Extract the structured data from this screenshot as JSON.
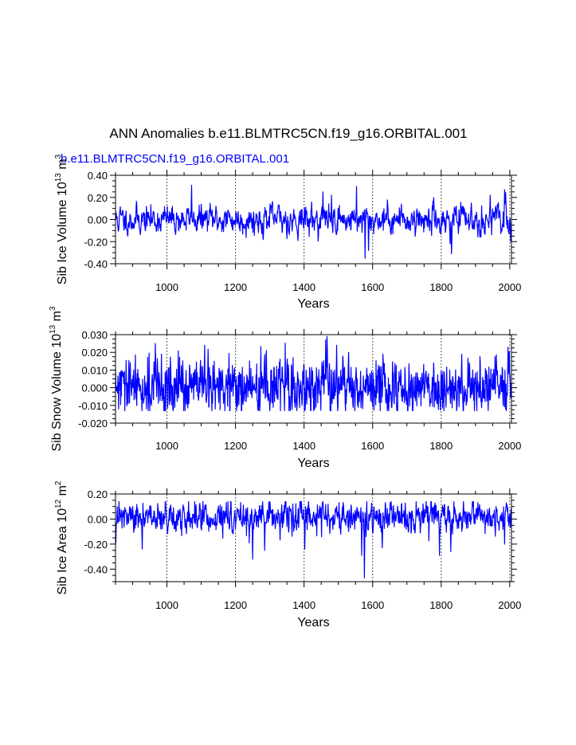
{
  "figure": {
    "title": "ANN Anomalies b.e11.BLMTRC5CN.f19_g16.ORBITAL.001",
    "subtitle": "b.e11.BLMTRC5CN.f19_g16.ORBITAL.001",
    "subtitle_color": "#0000ff",
    "line_color": "#0000ff"
  },
  "chart_data": [
    {
      "type": "line",
      "id": "ice_volume",
      "ylabel": "Sib Ice Volume 10^13 m^3",
      "ylabel_text": "Sib Ice Volume 10",
      "ylabel_exp1": "13",
      "ylabel_unit": " m",
      "ylabel_exp2": "3",
      "xlabel": "Years",
      "xlim": [
        850,
        2005
      ],
      "ylim": [
        -0.4,
        0.4
      ],
      "yticks": [
        -0.4,
        -0.2,
        0.0,
        0.2,
        0.4
      ],
      "ytick_labels": [
        "-0.40",
        "-0.20",
        "0.00",
        "0.20",
        "0.40"
      ],
      "xticks": [
        1000,
        1200,
        1400,
        1600,
        1800,
        2000
      ],
      "xtick_labels": [
        "1000",
        "1200",
        "1400",
        "1600",
        "1800",
        "2000"
      ],
      "vgrid": [
        1000,
        1200,
        1400,
        1600,
        1800,
        2000
      ],
      "series_name": "b.e11.BLMTRC5CN.f19_g16.ORBITAL.001",
      "x_start": 850,
      "x_step": 1,
      "seed": 11,
      "noise": 0.085,
      "smooth": 0.55,
      "clip": [
        -0.36,
        0.32
      ],
      "events": [
        {
          "year": 1072,
          "value": 0.31
        },
        {
          "year": 1455,
          "value": 0.25
        },
        {
          "year": 1480,
          "value": 0.22
        },
        {
          "year": 1553,
          "value": 0.3
        },
        {
          "year": 1578,
          "value": -0.35
        },
        {
          "year": 1588,
          "value": -0.28
        },
        {
          "year": 1830,
          "value": -0.31
        },
        {
          "year": 1826,
          "value": -0.22
        },
        {
          "year": 1943,
          "value": 0.22
        },
        {
          "year": 1985,
          "value": 0.27
        },
        {
          "year": 2003,
          "value": -0.2
        }
      ]
    },
    {
      "type": "line",
      "id": "snow_volume",
      "ylabel": "Sib Snow Volume 10^13 m^3",
      "ylabel_text": "Sib Snow Volume 10",
      "ylabel_exp1": "13",
      "ylabel_unit": " m",
      "ylabel_exp2": "3",
      "xlabel": "Years",
      "xlim": [
        850,
        2005
      ],
      "ylim": [
        -0.02,
        0.03
      ],
      "yticks": [
        -0.02,
        -0.01,
        0.0,
        0.01,
        0.02,
        0.03
      ],
      "ytick_labels": [
        "-0.020",
        "-0.010",
        "0.000",
        "0.010",
        "0.020",
        "0.030"
      ],
      "xticks": [
        1000,
        1200,
        1400,
        1600,
        1800,
        2000
      ],
      "xtick_labels": [
        "1000",
        "1200",
        "1400",
        "1600",
        "1800",
        "2000"
      ],
      "vgrid": [
        1000,
        1200,
        1400,
        1600,
        1800,
        2000
      ],
      "series_name": "b.e11.BLMTRC5CN.f19_g16.ORBITAL.001",
      "x_start": 850,
      "x_step": 1,
      "seed": 29,
      "noise": 0.0068,
      "smooth": 0.2,
      "clip": [
        -0.013,
        0.029
      ],
      "events": [
        {
          "year": 966,
          "value": 0.025
        },
        {
          "year": 1110,
          "value": 0.024
        },
        {
          "year": 1290,
          "value": 0.021
        },
        {
          "year": 1467,
          "value": 0.029
        },
        {
          "year": 1495,
          "value": 0.024
        },
        {
          "year": 1530,
          "value": 0.02
        },
        {
          "year": 1860,
          "value": 0.019
        },
        {
          "year": 1995,
          "value": 0.023
        }
      ]
    },
    {
      "type": "line",
      "id": "ice_area",
      "ylabel": "Sib Ice Area 10^12 m^2",
      "ylabel_text": "Sib Ice Area 10",
      "ylabel_exp1": "12",
      "ylabel_unit": " m",
      "ylabel_exp2": "2",
      "xlabel": "Years",
      "xlim": [
        850,
        2005
      ],
      "ylim": [
        -0.5,
        0.2
      ],
      "yticks": [
        -0.4,
        -0.2,
        0.0,
        0.2
      ],
      "ytick_labels": [
        "-0.40",
        "-0.20",
        "0.00",
        "0.20"
      ],
      "xticks": [
        1000,
        1200,
        1400,
        1600,
        1800,
        2000
      ],
      "xtick_labels": [
        "1000",
        "1200",
        "1400",
        "1600",
        "1800",
        "2000"
      ],
      "vgrid": [
        1000,
        1200,
        1400,
        1600,
        1800,
        2000
      ],
      "series_name": "b.e11.BLMTRC5CN.f19_g16.ORBITAL.001",
      "x_start": 850,
      "x_step": 1,
      "seed": 47,
      "noise": 0.06,
      "smooth": 0.35,
      "clip": [
        -0.48,
        0.14
      ],
      "bias": 0.01,
      "events": [
        {
          "year": 928,
          "value": -0.24
        },
        {
          "year": 1063,
          "value": 0.14
        },
        {
          "year": 1250,
          "value": -0.32
        },
        {
          "year": 1285,
          "value": -0.25
        },
        {
          "year": 1402,
          "value": -0.24
        },
        {
          "year": 1453,
          "value": 0.13
        },
        {
          "year": 1576,
          "value": -0.47
        },
        {
          "year": 1568,
          "value": -0.29
        },
        {
          "year": 1628,
          "value": -0.23
        },
        {
          "year": 1795,
          "value": -0.29
        },
        {
          "year": 1828,
          "value": -0.26
        },
        {
          "year": 1990,
          "value": 0.13
        },
        {
          "year": 1985,
          "value": -0.2
        }
      ]
    }
  ]
}
